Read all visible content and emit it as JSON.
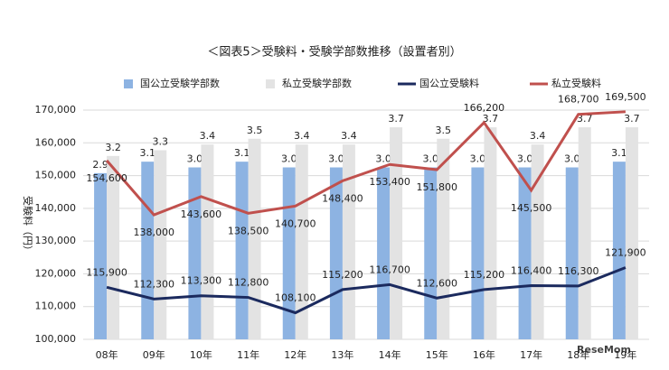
{
  "chart_data": {
    "type": "combo",
    "title": "＜図表5＞受験料・受験学部数推移（設置者別）",
    "y_label": "受験料（円）",
    "watermark": "ReseMom",
    "categories": [
      "08年",
      "09年",
      "10年",
      "11年",
      "12年",
      "13年",
      "14年",
      "15年",
      "16年",
      "17年",
      "18年",
      "19年"
    ],
    "ylim": [
      100000,
      170000
    ],
    "yticks": [
      {
        "value": 100000,
        "label": "100,000"
      },
      {
        "value": 110000,
        "label": "110,000"
      },
      {
        "value": 120000,
        "label": "120,000"
      },
      {
        "value": 130000,
        "label": "130,000"
      },
      {
        "value": 140000,
        "label": "140,000"
      },
      {
        "value": 150000,
        "label": "150,000"
      },
      {
        "value": 160000,
        "label": "160,000"
      },
      {
        "value": 170000,
        "label": "170,000"
      }
    ],
    "y2lim": [
      0,
      4
    ],
    "grid": true,
    "legend": "top",
    "series": [
      {
        "name": "国公立受験学部数",
        "type": "bar",
        "axis": "y2",
        "color": "#8db3e2",
        "values": [
          2.9,
          3.1,
          3.0,
          3.1,
          3.0,
          3.0,
          3.0,
          3.0,
          3.0,
          3.0,
          3.0,
          3.1
        ],
        "value_labels": [
          "2.9",
          "3.1",
          "3.0",
          "3.1",
          "3.0",
          "3.0",
          "3.0",
          "3.0",
          "3.0",
          "3.0",
          "3.0",
          "3.1"
        ]
      },
      {
        "name": "私立受験学部数",
        "type": "bar",
        "axis": "y2",
        "color": "#e3e3e3",
        "values": [
          3.2,
          3.3,
          3.4,
          3.5,
          3.4,
          3.4,
          3.7,
          3.5,
          3.7,
          3.4,
          3.7,
          3.7
        ],
        "value_labels": [
          "3.2",
          "3.3",
          "3.4",
          "3.5",
          "3.4",
          "3.4",
          "3.7",
          "3.5",
          "3.7",
          "3.4",
          "3.7",
          "3.7"
        ]
      },
      {
        "name": "国公立受験料",
        "type": "line",
        "color": "#1b2a5e",
        "values": [
          115900,
          112300,
          113300,
          112800,
          108100,
          115200,
          116700,
          112600,
          115200,
          116400,
          116300,
          121900
        ],
        "value_labels": [
          "115,900",
          "112,300",
          "113,300",
          "112,800",
          "108,100",
          "115,200",
          "116,700",
          "112,600",
          "115,200",
          "116,400",
          "116,300",
          "121,900"
        ]
      },
      {
        "name": "私立受験料",
        "type": "line",
        "color": "#c0504d",
        "values": [
          154600,
          138000,
          143600,
          138500,
          140700,
          148400,
          153400,
          151800,
          166200,
          145500,
          168700,
          169500
        ],
        "value_labels": [
          "154,600",
          "138,000",
          "143,600",
          "138,500",
          "140,700",
          "148,400",
          "153,400",
          "151,800",
          "166,200",
          "145,500",
          "168,700",
          "169,500"
        ]
      }
    ]
  }
}
